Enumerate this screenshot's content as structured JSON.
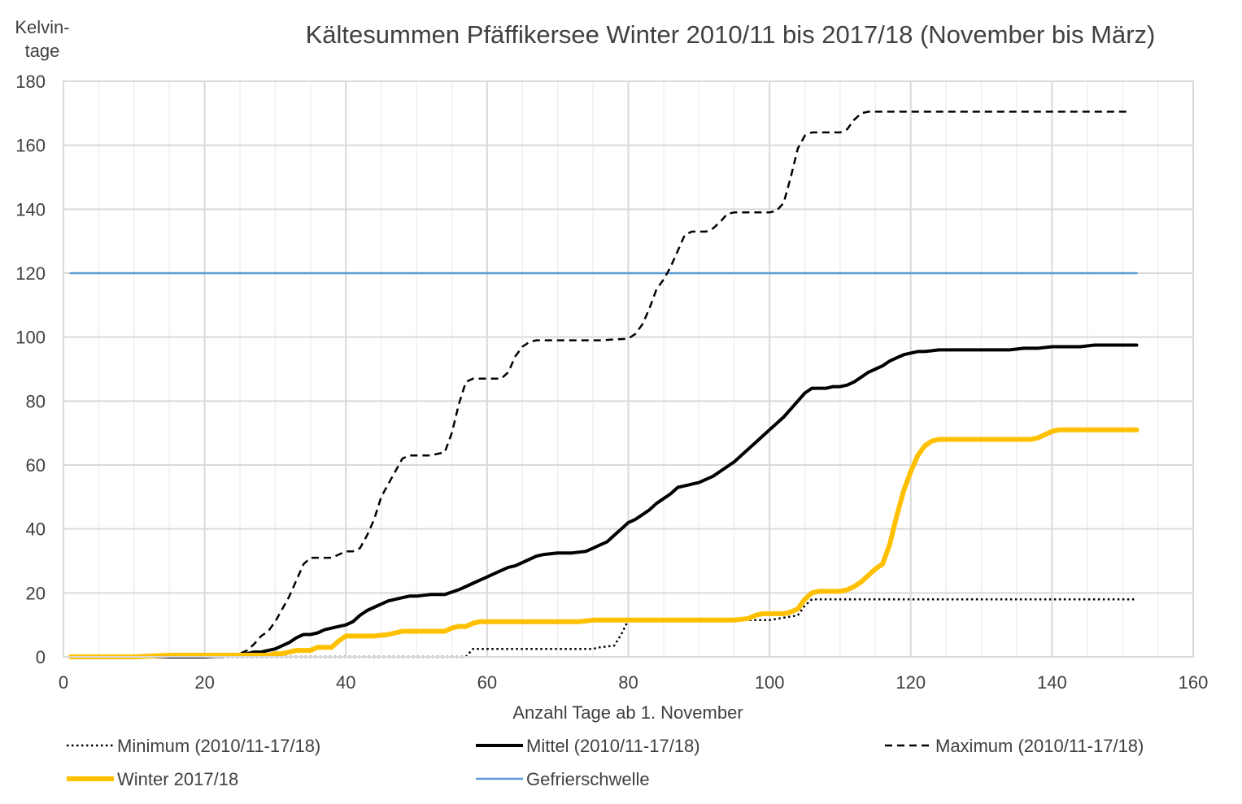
{
  "chart_data": {
    "type": "line",
    "title": "Kältesummen Pfäffikersee Winter 2010/11 bis 2017/18 (November bis März)",
    "xlabel": "Anzahl Tage ab 1. November",
    "ylabel": [
      "Kelvin-",
      "tage"
    ],
    "xlim": [
      0,
      160
    ],
    "ylim": [
      0,
      180
    ],
    "xticks": [
      0,
      20,
      40,
      60,
      80,
      100,
      120,
      140,
      160
    ],
    "yticks": [
      0,
      20,
      40,
      60,
      80,
      100,
      120,
      140,
      160,
      180
    ],
    "grid": true,
    "legend_position": "bottom",
    "series": [
      {
        "name": "Minimum (2010/11-17/18)",
        "style": "dotted",
        "color": "#000000",
        "width": 2.5,
        "points": [
          [
            1,
            0
          ],
          [
            25,
            0
          ],
          [
            30,
            0
          ],
          [
            57,
            0
          ],
          [
            58,
            2.5
          ],
          [
            60,
            2.5
          ],
          [
            75,
            2.5
          ],
          [
            76,
            3
          ],
          [
            78,
            3.5
          ],
          [
            79,
            7
          ],
          [
            80,
            11.5
          ],
          [
            85,
            11.5
          ],
          [
            100,
            11.5
          ],
          [
            104,
            13
          ],
          [
            105,
            16
          ],
          [
            106,
            18
          ],
          [
            110,
            18
          ],
          [
            120,
            18
          ],
          [
            140,
            18
          ],
          [
            152,
            18
          ]
        ]
      },
      {
        "name": "Mittel (2010/11-17/18)",
        "style": "solid",
        "color": "#000000",
        "width": 4,
        "points": [
          [
            1,
            0
          ],
          [
            20,
            0
          ],
          [
            25,
            0.5
          ],
          [
            26,
            1
          ],
          [
            27,
            1.5
          ],
          [
            28,
            1.5
          ],
          [
            29,
            2
          ],
          [
            30,
            2.5
          ],
          [
            31,
            3.5
          ],
          [
            32,
            4.5
          ],
          [
            33,
            6
          ],
          [
            34,
            7
          ],
          [
            35,
            7
          ],
          [
            36,
            7.5
          ],
          [
            37,
            8.5
          ],
          [
            38,
            9
          ],
          [
            39,
            9.5
          ],
          [
            40,
            10
          ],
          [
            41,
            11
          ],
          [
            42,
            13
          ],
          [
            43,
            14.5
          ],
          [
            44,
            15.5
          ],
          [
            45,
            16.5
          ],
          [
            46,
            17.5
          ],
          [
            47,
            18
          ],
          [
            48,
            18.5
          ],
          [
            49,
            19
          ],
          [
            50,
            19
          ],
          [
            52,
            19.5
          ],
          [
            54,
            19.5
          ],
          [
            56,
            21
          ],
          [
            57,
            22
          ],
          [
            58,
            23
          ],
          [
            59,
            24
          ],
          [
            60,
            25
          ],
          [
            61,
            26
          ],
          [
            62,
            27
          ],
          [
            63,
            28
          ],
          [
            64,
            28.5
          ],
          [
            65,
            29.5
          ],
          [
            66,
            30.5
          ],
          [
            67,
            31.5
          ],
          [
            68,
            32
          ],
          [
            70,
            32.5
          ],
          [
            72,
            32.5
          ],
          [
            74,
            33
          ],
          [
            75,
            34
          ],
          [
            76,
            35
          ],
          [
            77,
            36
          ],
          [
            78,
            38
          ],
          [
            79,
            40
          ],
          [
            80,
            42
          ],
          [
            81,
            43
          ],
          [
            82,
            44.5
          ],
          [
            83,
            46
          ],
          [
            84,
            48
          ],
          [
            85,
            49.5
          ],
          [
            86,
            51
          ],
          [
            87,
            53
          ],
          [
            88,
            53.5
          ],
          [
            89,
            54
          ],
          [
            90,
            54.5
          ],
          [
            91,
            55.5
          ],
          [
            92,
            56.5
          ],
          [
            93,
            58
          ],
          [
            94,
            59.5
          ],
          [
            95,
            61
          ],
          [
            96,
            63
          ],
          [
            97,
            65
          ],
          [
            98,
            67
          ],
          [
            99,
            69
          ],
          [
            100,
            71
          ],
          [
            101,
            73
          ],
          [
            102,
            75
          ],
          [
            103,
            77.5
          ],
          [
            104,
            80
          ],
          [
            105,
            82.5
          ],
          [
            106,
            84
          ],
          [
            107,
            84
          ],
          [
            108,
            84
          ],
          [
            109,
            84.5
          ],
          [
            110,
            84.5
          ],
          [
            111,
            85
          ],
          [
            112,
            86
          ],
          [
            113,
            87.5
          ],
          [
            114,
            89
          ],
          [
            115,
            90
          ],
          [
            116,
            91
          ],
          [
            117,
            92.5
          ],
          [
            118,
            93.5
          ],
          [
            119,
            94.5
          ],
          [
            120,
            95
          ],
          [
            121,
            95.5
          ],
          [
            122,
            95.5
          ],
          [
            124,
            96
          ],
          [
            126,
            96
          ],
          [
            130,
            96
          ],
          [
            134,
            96
          ],
          [
            136,
            96.5
          ],
          [
            138,
            96.5
          ],
          [
            140,
            97
          ],
          [
            142,
            97
          ],
          [
            144,
            97
          ],
          [
            146,
            97.5
          ],
          [
            148,
            97.5
          ],
          [
            150,
            97.5
          ],
          [
            152,
            97.5
          ]
        ]
      },
      {
        "name": "Maximum (2010/11-17/18)",
        "style": "dashed",
        "color": "#000000",
        "width": 2.5,
        "points": [
          [
            1,
            0
          ],
          [
            23,
            0
          ],
          [
            25,
            1
          ],
          [
            26,
            2
          ],
          [
            27,
            4
          ],
          [
            28,
            6.5
          ],
          [
            29,
            8
          ],
          [
            30,
            11
          ],
          [
            31,
            15
          ],
          [
            32,
            19
          ],
          [
            33,
            24
          ],
          [
            34,
            29
          ],
          [
            35,
            31
          ],
          [
            36,
            31
          ],
          [
            38,
            31
          ],
          [
            39,
            32
          ],
          [
            40,
            33
          ],
          [
            41,
            33
          ],
          [
            42,
            34
          ],
          [
            43,
            38
          ],
          [
            44,
            43
          ],
          [
            45,
            50
          ],
          [
            46,
            54
          ],
          [
            47,
            58
          ],
          [
            48,
            62
          ],
          [
            49,
            63
          ],
          [
            52,
            63
          ],
          [
            54,
            64
          ],
          [
            55,
            70
          ],
          [
            56,
            79
          ],
          [
            57,
            86
          ],
          [
            58,
            87
          ],
          [
            62,
            87
          ],
          [
            63,
            89
          ],
          [
            64,
            94
          ],
          [
            65,
            97
          ],
          [
            66,
            98.5
          ],
          [
            67,
            99
          ],
          [
            72,
            99
          ],
          [
            76,
            99
          ],
          [
            80,
            99.5
          ],
          [
            81,
            101
          ],
          [
            82,
            104
          ],
          [
            83,
            109
          ],
          [
            84,
            115
          ],
          [
            85,
            118
          ],
          [
            86,
            122
          ],
          [
            87,
            127
          ],
          [
            88,
            132
          ],
          [
            89,
            133
          ],
          [
            91,
            133
          ],
          [
            92,
            134
          ],
          [
            93,
            136
          ],
          [
            94,
            138.5
          ],
          [
            95,
            139
          ],
          [
            100,
            139
          ],
          [
            101,
            139.5
          ],
          [
            102,
            142
          ],
          [
            103,
            150
          ],
          [
            104,
            159
          ],
          [
            105,
            163
          ],
          [
            106,
            164
          ],
          [
            110,
            164
          ],
          [
            111,
            165
          ],
          [
            112,
            168
          ],
          [
            113,
            170
          ],
          [
            114,
            170.5
          ],
          [
            120,
            170.5
          ],
          [
            130,
            170.5
          ],
          [
            140,
            170.5
          ],
          [
            151,
            170.5
          ]
        ]
      },
      {
        "name": "Winter 2017/18",
        "style": "solid",
        "color": "#FFC000",
        "width": 6,
        "points": [
          [
            1,
            0
          ],
          [
            10,
            0
          ],
          [
            15,
            0.5
          ],
          [
            20,
            0.5
          ],
          [
            29,
            0.5
          ],
          [
            30,
            1
          ],
          [
            31,
            1
          ],
          [
            32,
            1.5
          ],
          [
            33,
            2
          ],
          [
            34,
            2
          ],
          [
            35,
            2
          ],
          [
            36,
            3
          ],
          [
            37,
            3
          ],
          [
            38,
            3
          ],
          [
            39,
            5
          ],
          [
            40,
            6.5
          ],
          [
            41,
            6.5
          ],
          [
            44,
            6.5
          ],
          [
            46,
            7
          ],
          [
            47,
            7.5
          ],
          [
            48,
            8
          ],
          [
            50,
            8
          ],
          [
            52,
            8
          ],
          [
            54,
            8
          ],
          [
            55,
            9
          ],
          [
            56,
            9.5
          ],
          [
            57,
            9.5
          ],
          [
            58,
            10.5
          ],
          [
            59,
            11
          ],
          [
            60,
            11
          ],
          [
            62,
            11
          ],
          [
            65,
            11
          ],
          [
            70,
            11
          ],
          [
            73,
            11
          ],
          [
            75,
            11.5
          ],
          [
            76,
            11.5
          ],
          [
            80,
            11.5
          ],
          [
            90,
            11.5
          ],
          [
            95,
            11.5
          ],
          [
            97,
            12
          ],
          [
            98,
            13
          ],
          [
            99,
            13.5
          ],
          [
            100,
            13.5
          ],
          [
            101,
            13.5
          ],
          [
            102,
            13.5
          ],
          [
            103,
            14
          ],
          [
            104,
            15
          ],
          [
            105,
            18
          ],
          [
            106,
            20
          ],
          [
            107,
            20.5
          ],
          [
            108,
            20.5
          ],
          [
            110,
            20.5
          ],
          [
            111,
            21
          ],
          [
            112,
            22
          ],
          [
            113,
            23.5
          ],
          [
            114,
            25.5
          ],
          [
            115,
            27.5
          ],
          [
            116,
            29
          ],
          [
            117,
            35
          ],
          [
            118,
            44
          ],
          [
            119,
            52
          ],
          [
            120,
            58
          ],
          [
            121,
            63
          ],
          [
            122,
            66
          ],
          [
            123,
            67.5
          ],
          [
            124,
            68
          ],
          [
            126,
            68
          ],
          [
            130,
            68
          ],
          [
            134,
            68
          ],
          [
            137,
            68
          ],
          [
            138,
            68.5
          ],
          [
            139,
            69.5
          ],
          [
            140,
            70.5
          ],
          [
            141,
            71
          ],
          [
            145,
            71
          ],
          [
            150,
            71
          ],
          [
            152,
            71
          ]
        ]
      },
      {
        "name": "Gefrierschwelle",
        "style": "solid",
        "color": "#5B9BD5",
        "width": 2.5,
        "points": [
          [
            1,
            120
          ],
          [
            152,
            120
          ]
        ]
      }
    ]
  }
}
